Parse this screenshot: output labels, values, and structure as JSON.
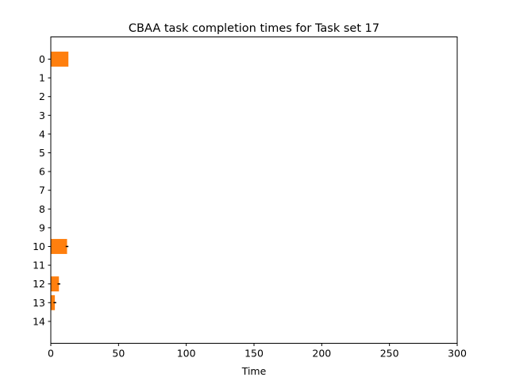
{
  "chart_data": {
    "type": "bar",
    "orientation": "horizontal",
    "title": "CBAA task completion times for Task set 17",
    "xlabel": "Time",
    "ylabel": "",
    "xlim": [
      0,
      300
    ],
    "xticks": [
      0,
      50,
      100,
      150,
      200,
      250,
      300
    ],
    "categories": [
      "0",
      "1",
      "2",
      "3",
      "4",
      "5",
      "6",
      "7",
      "8",
      "9",
      "10",
      "11",
      "12",
      "13",
      "14"
    ],
    "values": [
      13,
      0,
      0,
      0,
      0,
      0,
      0,
      0,
      0,
      0,
      12,
      0,
      6,
      3,
      0
    ],
    "error": [
      0,
      0,
      0,
      0,
      0,
      0,
      0,
      0,
      0,
      0,
      1,
      0,
      1,
      1,
      0
    ],
    "bar_color": "#ff7f0e",
    "error_color": "#000000",
    "grid": false,
    "legend": "none"
  }
}
